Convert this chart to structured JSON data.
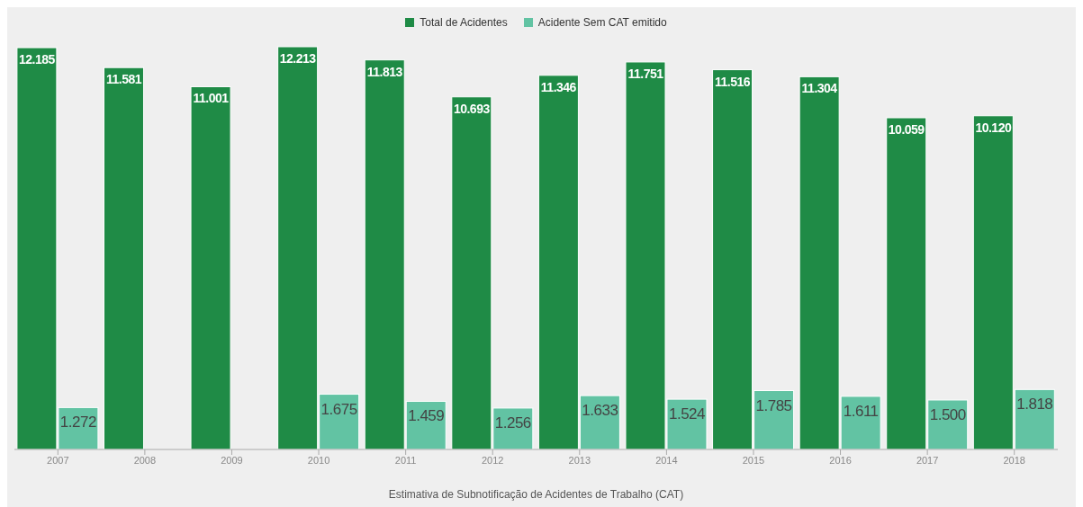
{
  "chart_data": {
    "type": "bar",
    "xlabel": "Estimativa de Subnotificação de Acidentes de Trabalho (CAT)",
    "categories": [
      "2007",
      "2008",
      "2009",
      "2010",
      "2011",
      "2012",
      "2013",
      "2014",
      "2015",
      "2016",
      "2017",
      "2018"
    ],
    "legend": "top",
    "series": [
      {
        "name": "Total de Acidentes",
        "color": "#1f8b46",
        "values": [
          12185,
          11581,
          11001,
          12213,
          11813,
          10693,
          11346,
          11751,
          11516,
          11304,
          10059,
          10120
        ],
        "value_labels": [
          "12.185",
          "11.581",
          "11.001",
          "12.213",
          "11.813",
          "10.693",
          "11.346",
          "11.751",
          "11.516",
          "11.304",
          "10.059",
          "10.120"
        ]
      },
      {
        "name": "Acidente Sem CAT emitido",
        "color": "#62c3a3",
        "values": [
          1272,
          null,
          null,
          1675,
          1459,
          1256,
          1633,
          1524,
          1785,
          1611,
          1500,
          1818
        ],
        "value_labels": [
          "1.272",
          null,
          null,
          "1.675",
          "1.459",
          "1.256",
          "1.633",
          "1.524",
          "1.785",
          "1.611",
          "1.500",
          "1.818"
        ]
      }
    ]
  }
}
